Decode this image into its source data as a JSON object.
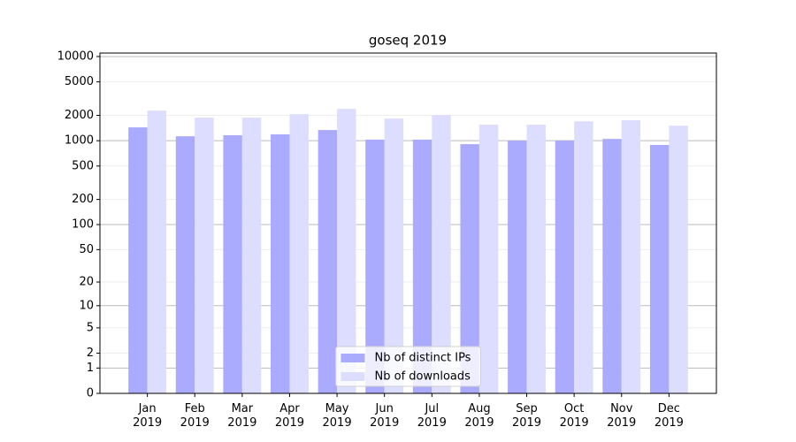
{
  "chart_data": {
    "type": "bar",
    "title": "goseq 2019",
    "categories": [
      "Jan\n2019",
      "Feb\n2019",
      "Mar\n2019",
      "Apr\n2019",
      "May\n2019",
      "Jun\n2019",
      "Jul\n2019",
      "Aug\n2019",
      "Sep\n2019",
      "Oct\n2019",
      "Nov\n2019",
      "Dec\n2019"
    ],
    "series": [
      {
        "name": "Nb of distinct IPs",
        "color": "#aaaaff",
        "values": [
          1440,
          1130,
          1160,
          1190,
          1340,
          1030,
          1030,
          910,
          1000,
          1000,
          1050,
          890
        ]
      },
      {
        "name": "Nb of downloads",
        "color": "#ddddff",
        "values": [
          2280,
          1880,
          1880,
          2070,
          2390,
          1830,
          2020,
          1550,
          1550,
          1700,
          1750,
          1510
        ]
      }
    ],
    "yscale": "log-plus-one",
    "ylim": [
      0,
      11000
    ],
    "yticks": [
      0,
      1,
      2,
      5,
      10,
      20,
      50,
      100,
      200,
      500,
      1000,
      2000,
      5000,
      10000
    ],
    "grid": true,
    "legend": "lower center"
  }
}
